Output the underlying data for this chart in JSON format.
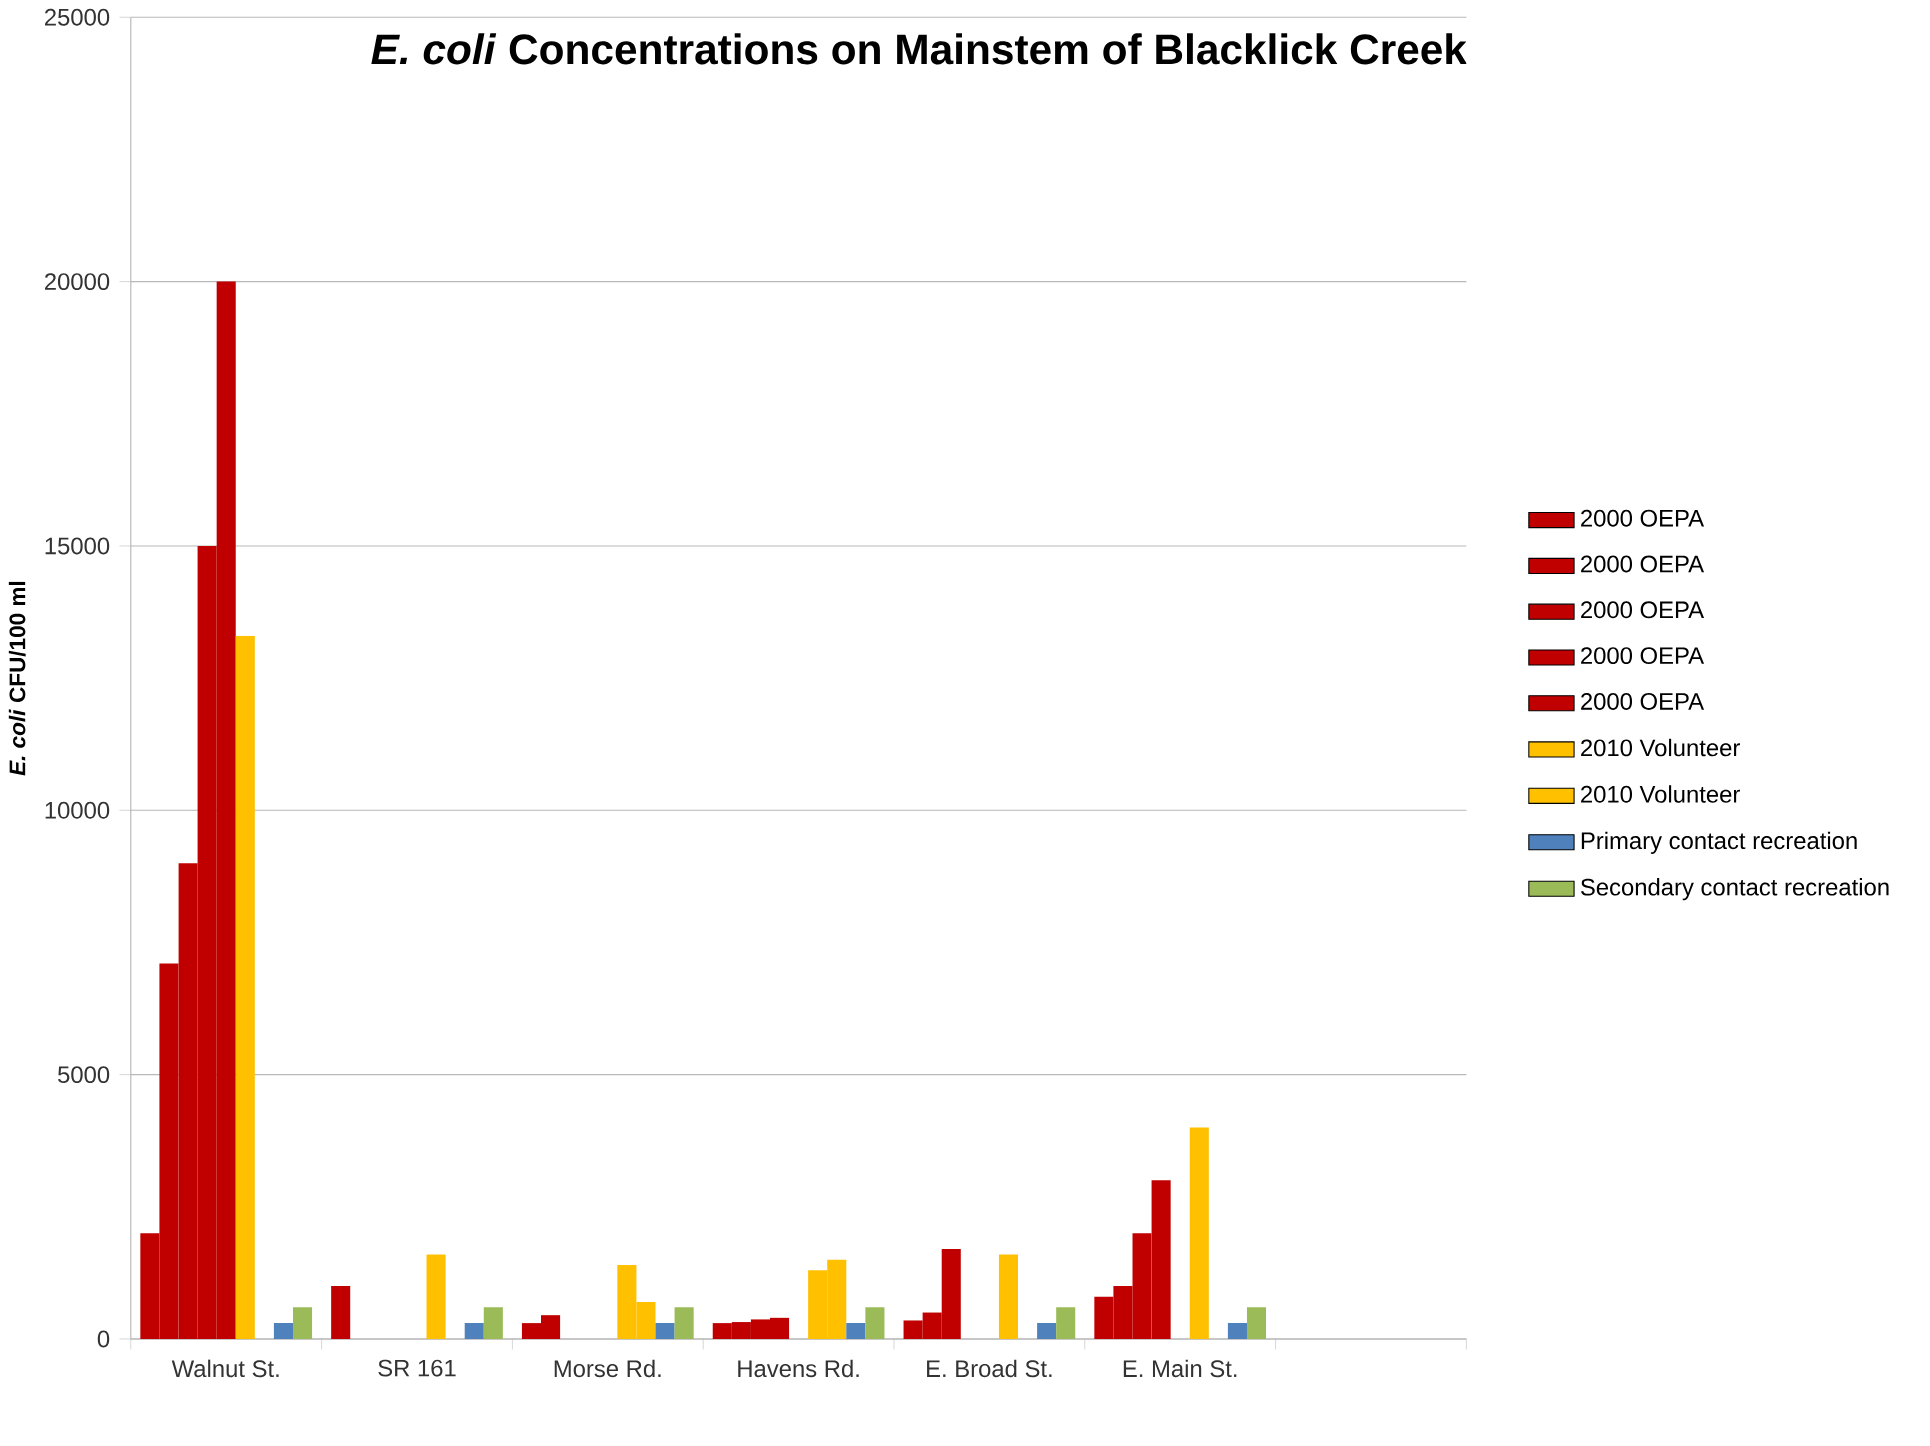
{
  "chart_data": {
    "type": "bar",
    "title": "*E. coli* Concentrations on Mainstem of Blacklick Creek",
    "ylabel": "*E. coli* CFU/100 ml",
    "categories": [
      "Walnut St.",
      "SR 161",
      "Morse Rd.",
      "Havens Rd.",
      "E. Broad St.",
      "E. Main St.",
      null
    ],
    "series": [
      {
        "name": "2000 OEPA",
        "color": "#c00000",
        "values": [
          2000,
          1000,
          300,
          300,
          350,
          800,
          null
        ]
      },
      {
        "name": "2000 OEPA",
        "color": "#c00000",
        "values": [
          7100,
          null,
          450,
          320,
          500,
          1000,
          null
        ]
      },
      {
        "name": "2000 OEPA",
        "color": "#c00000",
        "values": [
          9000,
          null,
          null,
          370,
          1700,
          2000,
          null
        ]
      },
      {
        "name": "2000 OEPA",
        "color": "#c00000",
        "values": [
          15000,
          null,
          null,
          400,
          null,
          3000,
          null
        ]
      },
      {
        "name": "2000 OEPA",
        "color": "#c00000",
        "values": [
          20000,
          null,
          null,
          null,
          null,
          null,
          null
        ]
      },
      {
        "name": "2010 Volunteer",
        "color": "#ffc000",
        "values": [
          13300,
          1600,
          1400,
          1300,
          1600,
          4000,
          null
        ]
      },
      {
        "name": "2010 Volunteer",
        "color": "#ffc000",
        "values": [
          null,
          null,
          700,
          1500,
          null,
          null,
          null
        ]
      },
      {
        "name": "Primary contact recreation",
        "color": "#4f81bd",
        "values": [
          300,
          300,
          300,
          300,
          300,
          300,
          null
        ]
      },
      {
        "name": "Secondary contact recreation",
        "color": "#9bbb59",
        "values": [
          600,
          600,
          600,
          600,
          600,
          600,
          null
        ]
      }
    ],
    "ylim": [
      0,
      25000
    ],
    "yticks": [
      0,
      5000,
      10000,
      15000,
      20000,
      25000
    ],
    "grid": "y",
    "legend": "right"
  }
}
